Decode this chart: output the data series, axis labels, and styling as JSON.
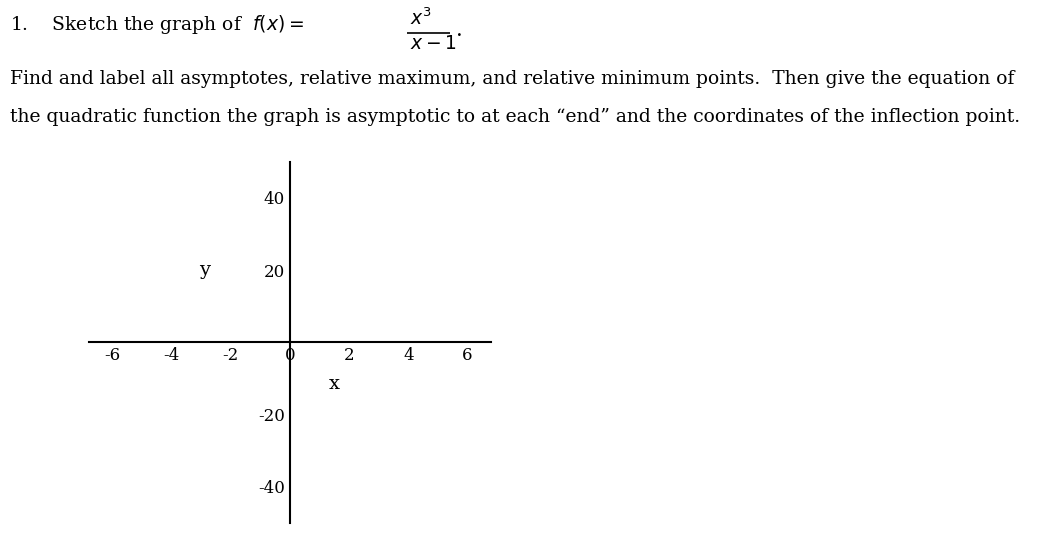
{
  "text_line2": "Find and label all asymptotes, relative maximum, and relative minimum points.  Then give the equation of",
  "text_line3": "the quadratic function the graph is asymptotic to at each “end” and the coordinates of the inflection point.",
  "xlim": [
    -6.8,
    6.8
  ],
  "ylim": [
    -50,
    50
  ],
  "xticks": [
    -6,
    -4,
    -2,
    0,
    2,
    4,
    6
  ],
  "yticks": [
    -40,
    -20,
    20,
    40
  ],
  "xlabel": "x",
  "ylabel": "y",
  "background_color": "#ffffff",
  "tick_fontsize": 12,
  "label_fontsize": 13,
  "text_fontsize": 13.5
}
